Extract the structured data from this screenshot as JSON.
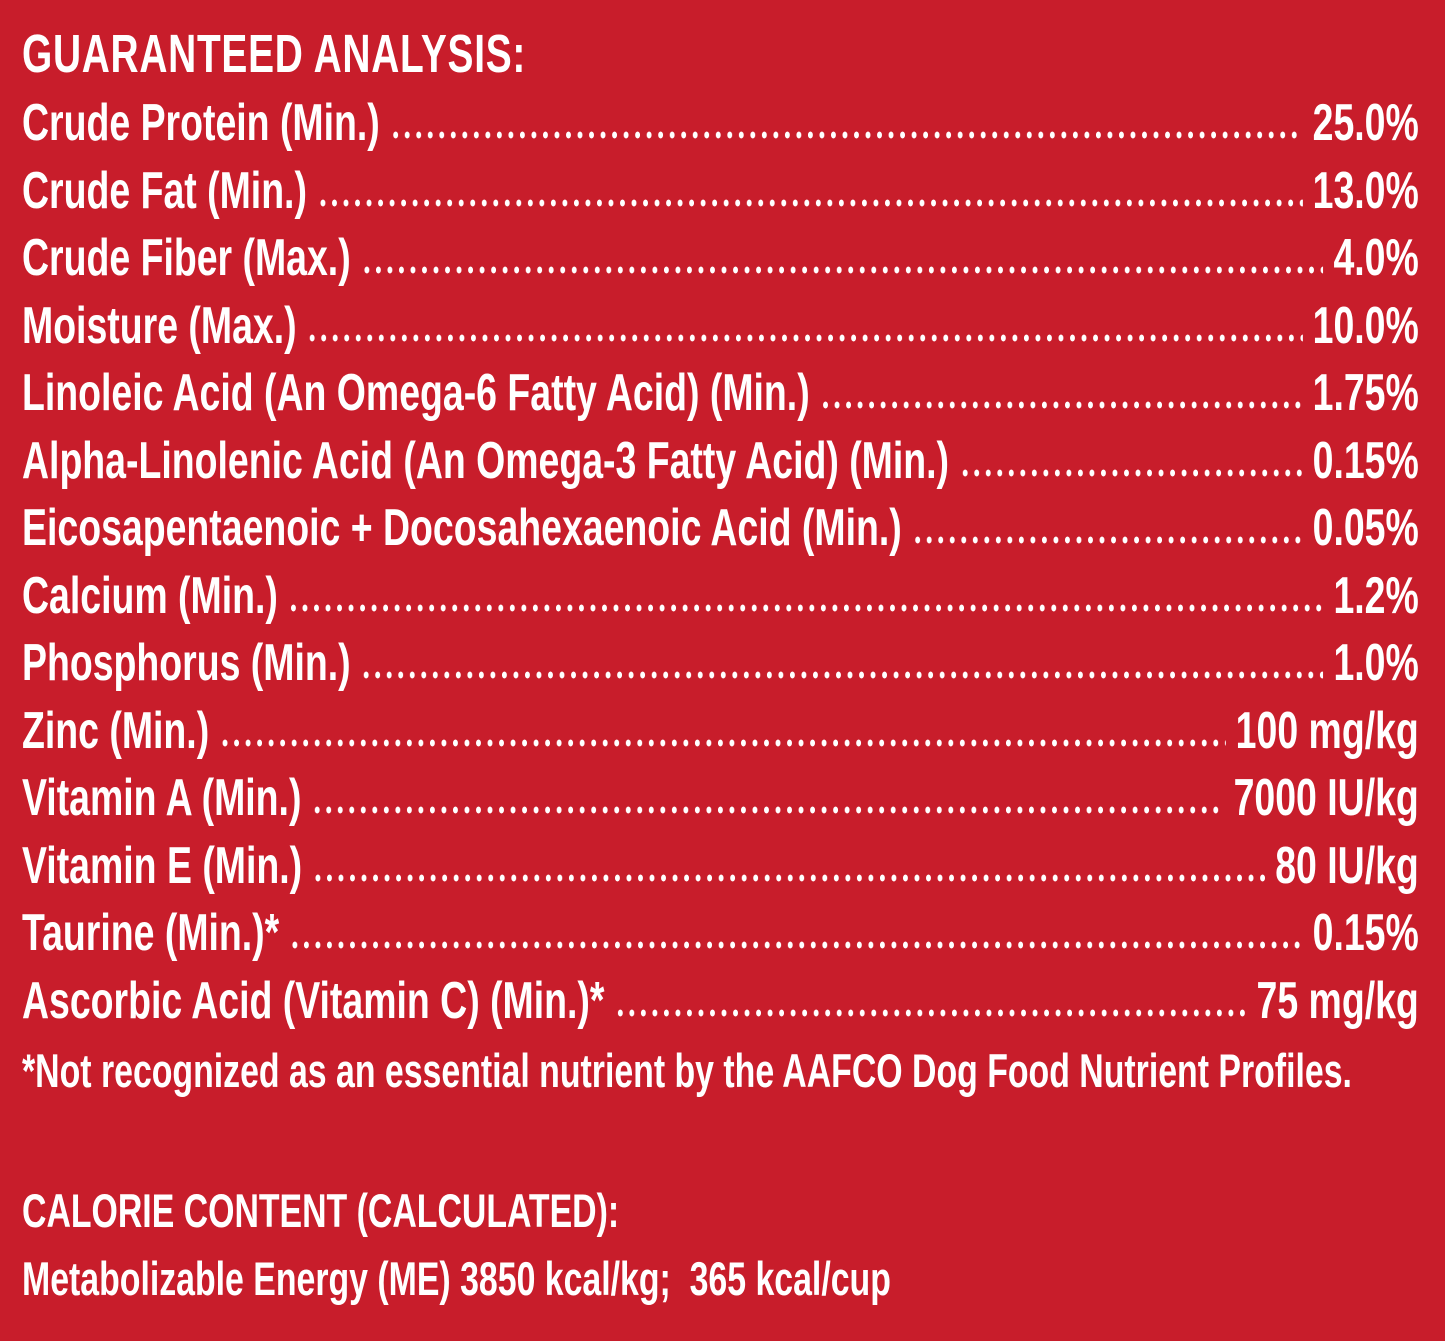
{
  "header": {
    "title": "GUARANTEED ANALYSIS:"
  },
  "rows": [
    {
      "label": "Crude Protein (Min.)",
      "value": "25.0%"
    },
    {
      "label": "Crude Fat (Min.)",
      "value": "13.0%"
    },
    {
      "label": "Crude Fiber (Max.)",
      "value": "4.0%"
    },
    {
      "label": "Moisture (Max.)",
      "value": "10.0%"
    },
    {
      "label": "Linoleic Acid (An Omega-6 Fatty Acid) (Min.)",
      "value": "1.75%"
    },
    {
      "label": "Alpha-Linolenic Acid (An Omega-3 Fatty Acid) (Min.)",
      "value": "0.15%"
    },
    {
      "label": "Eicosapentaenoic + Docosahexaenoic Acid (Min.)",
      "value": "0.05%"
    },
    {
      "label": "Calcium (Min.)",
      "value": "1.2%"
    },
    {
      "label": "Phosphorus (Min.)",
      "value": "1.0%"
    },
    {
      "label": "Zinc (Min.)",
      "value": "100 mg/kg"
    },
    {
      "label": "Vitamin A (Min.)",
      "value": "7000 IU/kg"
    },
    {
      "label": "Vitamin E (Min.)",
      "value": "80 IU/kg"
    },
    {
      "label": "Taurine (Min.)*",
      "value": "0.15%"
    },
    {
      "label": "Ascorbic Acid (Vitamin C) (Min.)*",
      "value": "75 mg/kg"
    }
  ],
  "footnote": "*Not recognized as an essential nutrient by the AAFCO Dog Food Nutrient Profiles.",
  "calorie": {
    "title": "CALORIE CONTENT (CALCULATED):",
    "text": "Metabolizable Energy (ME) 3850 kcal/kg;  365 kcal/cup"
  }
}
